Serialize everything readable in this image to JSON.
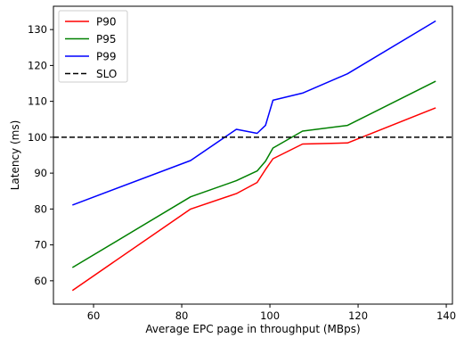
{
  "chart_data": {
    "type": "line",
    "title": "",
    "xlabel": "Average EPC page in throughput (MBps)",
    "ylabel": "Latency (ms)",
    "xlim": [
      50.9,
      141.4
    ],
    "ylim": [
      53.5,
      136.5
    ],
    "xticks": [
      60,
      80,
      100,
      120,
      140
    ],
    "yticks": [
      60,
      70,
      80,
      90,
      100,
      110,
      120,
      130
    ],
    "grid": false,
    "legend_position": "top-left",
    "series": [
      {
        "name": "P90",
        "color": "#ff0000",
        "dash": "solid",
        "points": [
          [
            55.2,
            57.3
          ],
          [
            82.0,
            80.0
          ],
          [
            92.4,
            84.3
          ],
          [
            97.1,
            87.4
          ],
          [
            99.0,
            91.0
          ],
          [
            100.7,
            94.0
          ],
          [
            107.4,
            98.1
          ],
          [
            117.6,
            98.4
          ],
          [
            137.6,
            108.2
          ]
        ]
      },
      {
        "name": "P95",
        "color": "#008000",
        "dash": "solid",
        "points": [
          [
            55.2,
            63.7
          ],
          [
            82.0,
            83.4
          ],
          [
            92.4,
            87.9
          ],
          [
            97.1,
            90.6
          ],
          [
            99.0,
            93.3
          ],
          [
            100.7,
            97.0
          ],
          [
            107.4,
            101.7
          ],
          [
            117.6,
            103.3
          ],
          [
            137.6,
            115.6
          ]
        ]
      },
      {
        "name": "P99",
        "color": "#0000ff",
        "dash": "solid",
        "points": [
          [
            55.2,
            81.1
          ],
          [
            82.0,
            93.5
          ],
          [
            92.4,
            102.2
          ],
          [
            97.1,
            101.1
          ],
          [
            99.0,
            103.3
          ],
          [
            100.7,
            110.3
          ],
          [
            107.4,
            112.3
          ],
          [
            117.6,
            117.7
          ],
          [
            137.6,
            132.4
          ]
        ]
      },
      {
        "name": "SLO",
        "color": "#000000",
        "dash": "dashed",
        "points": [
          [
            50.9,
            100
          ],
          [
            141.4,
            100
          ]
        ]
      }
    ]
  }
}
